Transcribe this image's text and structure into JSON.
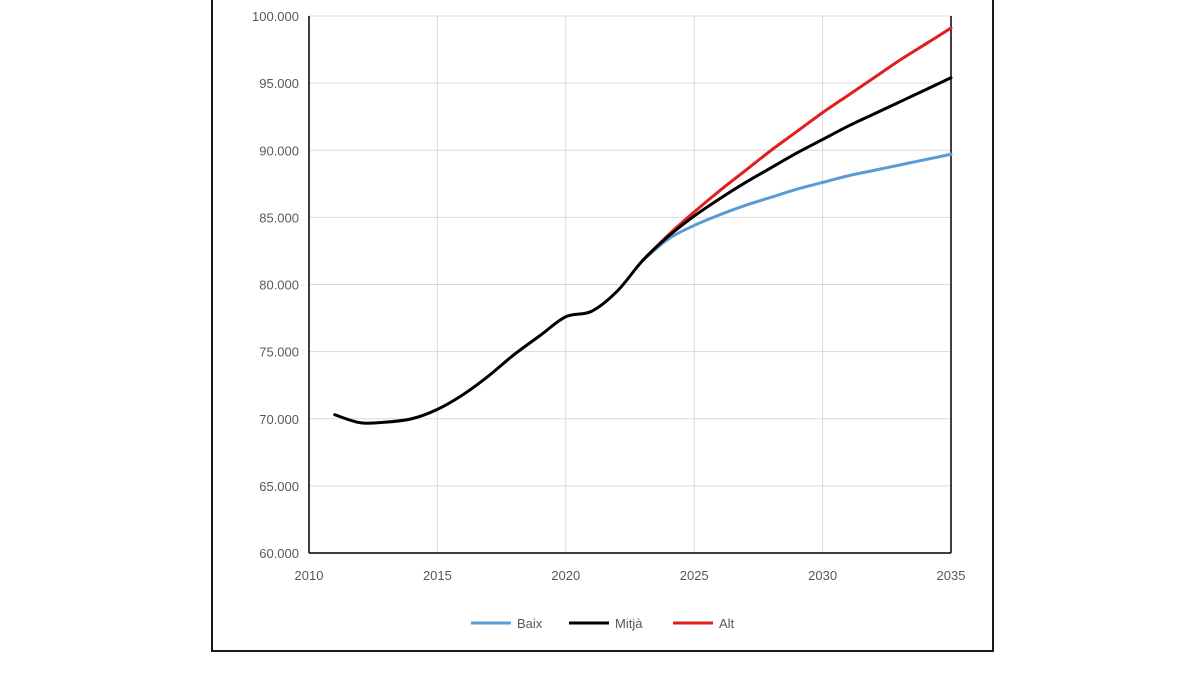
{
  "chart_data": {
    "type": "line",
    "title": "",
    "xlabel": "",
    "ylabel": "",
    "xlim": [
      2010,
      2035
    ],
    "ylim": [
      60000,
      100000
    ],
    "x_ticks": [
      2010,
      2015,
      2020,
      2025,
      2030,
      2035
    ],
    "x_tick_labels": [
      "2010",
      "2015",
      "2020",
      "2025",
      "2030",
      "2035"
    ],
    "y_ticks": [
      60000,
      65000,
      70000,
      75000,
      80000,
      85000,
      90000,
      95000,
      100000
    ],
    "y_tick_labels": [
      "60.000",
      "65.000",
      "70.000",
      "75.000",
      "80.000",
      "85.000",
      "90.000",
      "95.000",
      "100.000"
    ],
    "grid": true,
    "legend_position": "bottom",
    "series": [
      {
        "name": "Baix",
        "color": "#5b9bd5",
        "x": [
          2023,
          2024,
          2025,
          2026,
          2027,
          2028,
          2029,
          2030,
          2031,
          2032,
          2033,
          2034,
          2035
        ],
        "y": [
          81800,
          83400,
          84400,
          85200,
          85900,
          86500,
          87100,
          87600,
          88100,
          88500,
          88900,
          89300,
          89700
        ]
      },
      {
        "name": "Mitjà",
        "color": "#000000",
        "x": [
          2011,
          2012,
          2013,
          2014,
          2015,
          2016,
          2017,
          2018,
          2019,
          2020,
          2021,
          2022,
          2023,
          2024,
          2025,
          2026,
          2027,
          2028,
          2029,
          2030,
          2031,
          2032,
          2033,
          2034,
          2035
        ],
        "y": [
          70300,
          69700,
          69750,
          70000,
          70700,
          71800,
          73200,
          74800,
          76200,
          77600,
          78000,
          79500,
          81800,
          83600,
          85100,
          86400,
          87600,
          88700,
          89800,
          90800,
          91800,
          92700,
          93600,
          94500,
          95400
        ]
      },
      {
        "name": "Alt",
        "color": "#e01e1e",
        "x": [
          2023,
          2024,
          2025,
          2026,
          2027,
          2028,
          2029,
          2030,
          2031,
          2032,
          2033,
          2034,
          2035
        ],
        "y": [
          81800,
          83700,
          85400,
          87000,
          88500,
          90000,
          91400,
          92800,
          94100,
          95400,
          96700,
          97900,
          99100
        ]
      }
    ]
  }
}
